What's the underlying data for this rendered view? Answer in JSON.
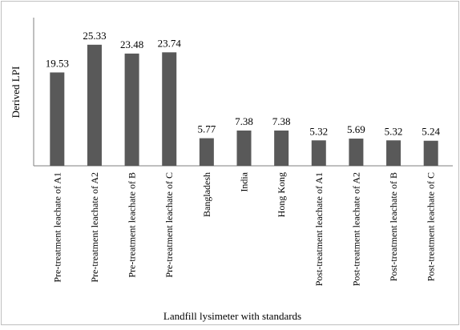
{
  "chart_data": {
    "type": "bar",
    "y_label": "Derived LPI",
    "x_label": "Landfill lysimeter with standards",
    "categories": [
      "Pre-treatment leachate of A1",
      "Pre-treatment leachate of A2",
      "Pre-treatment leachate of B",
      "Pre-treatment leachate of C",
      "Bangladesh",
      "India",
      "Hong Kong",
      "Post-treatment leachate of A1",
      "Post-treatment leachate of A2",
      "Post-treatment leachate of B",
      "Post-treatment leachate of C"
    ],
    "values": [
      19.53,
      25.33,
      23.48,
      23.74,
      5.77,
      7.38,
      7.38,
      5.32,
      5.69,
      5.32,
      5.24
    ],
    "color": "#595959",
    "ylim": [
      0,
      31
    ]
  }
}
